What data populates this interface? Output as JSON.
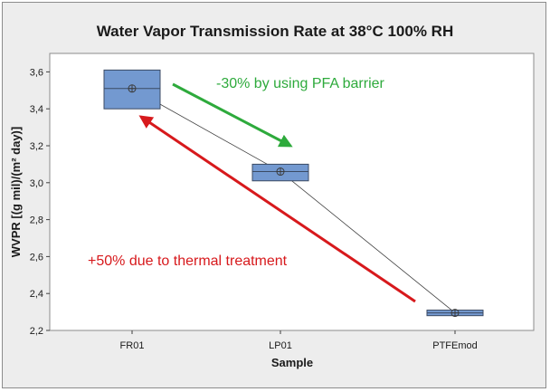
{
  "chart_data": {
    "type": "box",
    "title": "Water Vapor Transmission Rate at 38°C 100% RH",
    "xlabel": "Sample",
    "ylabel": "WVPR [(g mil)/(m² day)]",
    "categories": [
      "FR01",
      "LP01",
      "PTFEmod"
    ],
    "boxes": [
      {
        "category": "FR01",
        "q1": 3.4,
        "median": 3.51,
        "q3": 3.61,
        "mean": 3.51
      },
      {
        "category": "LP01",
        "q1": 3.01,
        "median": 3.06,
        "q3": 3.1,
        "mean": 3.06
      },
      {
        "category": "PTFEmod",
        "q1": 2.28,
        "median": 2.295,
        "q3": 2.31,
        "mean": 2.295
      }
    ],
    "ylim": [
      2.2,
      3.7
    ],
    "yticks": [
      "2,2",
      "2,4",
      "2,6",
      "2,8",
      "3,0",
      "3,2",
      "3,4",
      "3,6"
    ],
    "ytick_values": [
      2.2,
      2.4,
      2.6,
      2.8,
      3.0,
      3.2,
      3.4,
      3.6
    ],
    "grid": false,
    "box_color": "#7399d0",
    "annotations": [
      {
        "text": "-30% by using PFA barrier",
        "color": "#2eaa3c"
      },
      {
        "text": "+50% due to thermal treatment",
        "color": "#d7191c"
      }
    ]
  }
}
